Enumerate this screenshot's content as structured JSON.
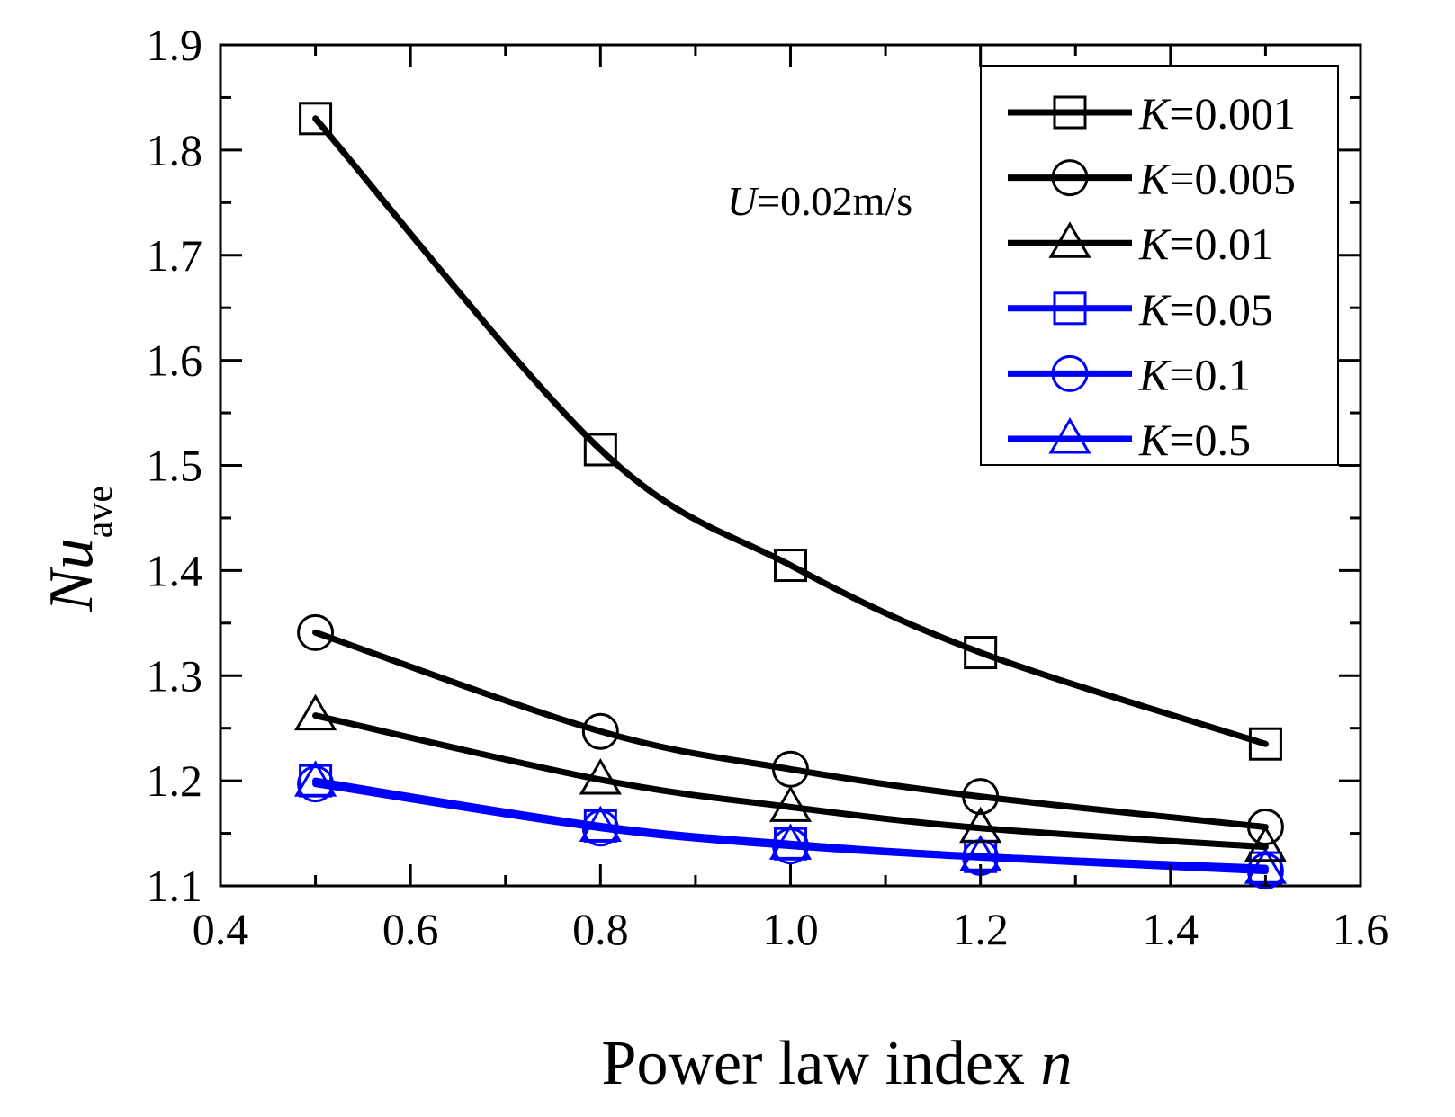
{
  "chart_data": {
    "type": "line",
    "xlabel_prefix": "Power law index ",
    "xlabel_var": "n",
    "ylabel_main": "Nu",
    "ylabel_sub": "ave",
    "xlim": [
      0.4,
      1.6
    ],
    "ylim": [
      1.1,
      1.9
    ],
    "x_ticks": [
      "0.4",
      "0.6",
      "0.8",
      "1.0",
      "1.2",
      "1.4",
      "1.6"
    ],
    "y_ticks": [
      "1.1",
      "1.2",
      "1.3",
      "1.4",
      "1.5",
      "1.6",
      "1.7",
      "1.8",
      "1.9"
    ],
    "annotation": {
      "var": "U",
      "text": "=0.02m/s"
    },
    "x": [
      0.5,
      0.8,
      1.0,
      1.2,
      1.5
    ],
    "series": [
      {
        "name": "K=0.001",
        "label_var": "K",
        "label_val": "=0.001",
        "color": "#000000",
        "marker": "square",
        "values": [
          1.83,
          1.515,
          1.405,
          1.322,
          1.235
        ]
      },
      {
        "name": "K=0.005",
        "label_var": "K",
        "label_val": "=0.005",
        "color": "#000000",
        "marker": "circle",
        "values": [
          1.341,
          1.247,
          1.211,
          1.185,
          1.156
        ]
      },
      {
        "name": "K=0.01",
        "label_var": "K",
        "label_val": "=0.01",
        "color": "#000000",
        "marker": "triangle",
        "values": [
          1.262,
          1.201,
          1.175,
          1.155,
          1.137
        ]
      },
      {
        "name": "K=0.05",
        "label_var": "K",
        "label_val": "=0.05",
        "color": "#0000ff",
        "marker": "square",
        "values": [
          1.2,
          1.157,
          1.14,
          1.128,
          1.117
        ]
      },
      {
        "name": "K=0.1",
        "label_var": "K",
        "label_val": "=0.1",
        "color": "#0000ff",
        "marker": "circle",
        "values": [
          1.197,
          1.155,
          1.138,
          1.127,
          1.114
        ]
      },
      {
        "name": "K=0.5",
        "label_var": "K",
        "label_val": "=0.5",
        "color": "#0000ff",
        "marker": "triangle",
        "values": [
          1.199,
          1.156,
          1.139,
          1.128,
          1.116
        ]
      }
    ]
  }
}
